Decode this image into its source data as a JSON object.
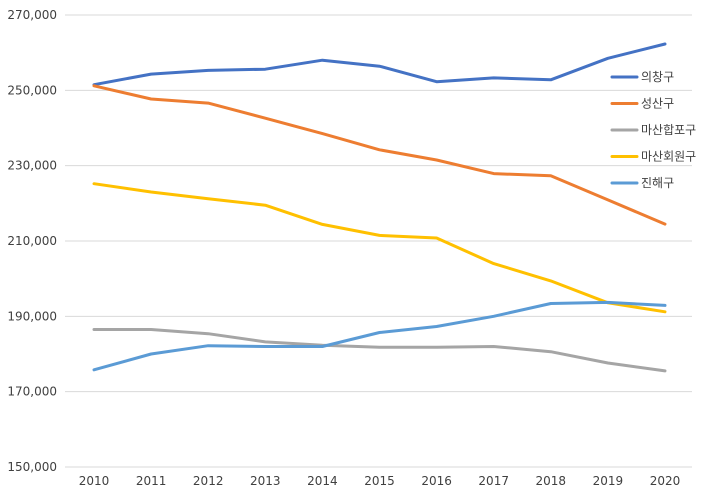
{
  "chart_data": {
    "type": "line",
    "title": "",
    "xlabel": "",
    "ylabel": "",
    "x": [
      "2010",
      "2011",
      "2012",
      "2013",
      "2014",
      "2015",
      "2016",
      "2017",
      "2018",
      "2019",
      "2020"
    ],
    "ylim": [
      150000,
      270000
    ],
    "yticks": [
      150000,
      170000,
      190000,
      210000,
      230000,
      250000,
      270000
    ],
    "ytick_labels": [
      "150,000",
      "170,000",
      "190,000",
      "210,000",
      "230,000",
      "250,000",
      "270,000"
    ],
    "grid": "horizontal",
    "legend_position": "right",
    "series": [
      {
        "name": "의창구",
        "color": "#4472C4",
        "values": [
          251500,
          254300,
          255300,
          255600,
          258000,
          256400,
          252300,
          253300,
          252800,
          258500,
          262300
        ]
      },
      {
        "name": "성산구",
        "color": "#ED7D31",
        "values": [
          251200,
          247700,
          246600,
          242600,
          238500,
          234200,
          231500,
          227900,
          227300,
          220900,
          214500
        ]
      },
      {
        "name": "마산합포구",
        "color": "#A5A5A5",
        "values": [
          186500,
          186500,
          185400,
          183200,
          182300,
          181800,
          181800,
          182000,
          180600,
          177600,
          175500
        ]
      },
      {
        "name": "마산회원구",
        "color": "#FFC000",
        "values": [
          225200,
          223000,
          221200,
          219500,
          214400,
          211500,
          210800,
          204000,
          199400,
          193600,
          191200
        ]
      },
      {
        "name": "진해구",
        "color": "#5B9BD5",
        "values": [
          175800,
          180000,
          182200,
          182000,
          182000,
          185700,
          187300,
          190000,
          193400,
          193700,
          192900
        ]
      }
    ]
  }
}
